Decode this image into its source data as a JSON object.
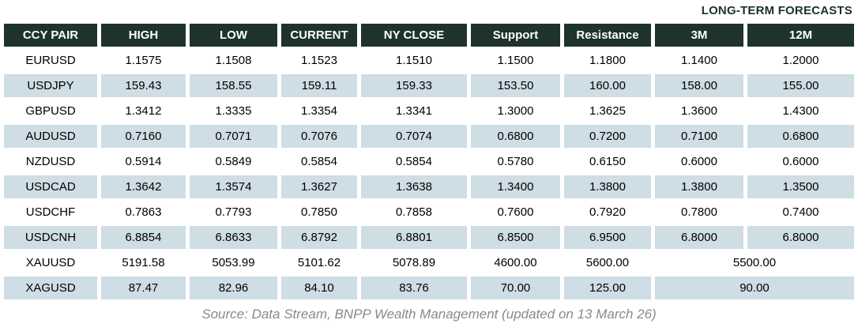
{
  "colors": {
    "header_bg": "#1e332e",
    "header_text": "#ffffff",
    "row_shade": "#cfdde5",
    "body_text": "#000000",
    "label_color": "#1b322e",
    "footer_color": "#898989",
    "page_bg": "#ffffff"
  },
  "forecast_label": "LONG-TERM FORECASTS",
  "table": {
    "columns": [
      "CCY PAIR",
      "HIGH",
      "LOW",
      "CURRENT",
      "NY CLOSE",
      "Support",
      "Resistance",
      "3M",
      "12M"
    ],
    "rows": [
      {
        "pair": "EURUSD",
        "high": "1.1575",
        "low": "1.1508",
        "current": "1.1523",
        "ny_close": "1.1510",
        "support": "1.1500",
        "resistance": "1.1800",
        "m3": "1.1400",
        "m12": "1.2000"
      },
      {
        "pair": "USDJPY",
        "high": "159.43",
        "low": "158.55",
        "current": "159.11",
        "ny_close": "159.33",
        "support": "153.50",
        "resistance": "160.00",
        "m3": "158.00",
        "m12": "155.00"
      },
      {
        "pair": "GBPUSD",
        "high": "1.3412",
        "low": "1.3335",
        "current": "1.3354",
        "ny_close": "1.3341",
        "support": "1.3000",
        "resistance": "1.3625",
        "m3": "1.3600",
        "m12": "1.4300"
      },
      {
        "pair": "AUDUSD",
        "high": "0.7160",
        "low": "0.7071",
        "current": "0.7076",
        "ny_close": "0.7074",
        "support": "0.6800",
        "resistance": "0.7200",
        "m3": "0.7100",
        "m12": "0.6800"
      },
      {
        "pair": "NZDUSD",
        "high": "0.5914",
        "low": "0.5849",
        "current": "0.5854",
        "ny_close": "0.5854",
        "support": "0.5780",
        "resistance": "0.6150",
        "m3": "0.6000",
        "m12": "0.6000"
      },
      {
        "pair": "USDCAD",
        "high": "1.3642",
        "low": "1.3574",
        "current": "1.3627",
        "ny_close": "1.3638",
        "support": "1.3400",
        "resistance": "1.3800",
        "m3": "1.3800",
        "m12": "1.3500"
      },
      {
        "pair": "USDCHF",
        "high": "0.7863",
        "low": "0.7793",
        "current": "0.7850",
        "ny_close": "0.7858",
        "support": "0.7600",
        "resistance": "0.7920",
        "m3": "0.7800",
        "m12": "0.7400"
      },
      {
        "pair": "USDCNH",
        "high": "6.8854",
        "low": "6.8633",
        "current": "6.8792",
        "ny_close": "6.8801",
        "support": "6.8500",
        "resistance": "6.9500",
        "m3": "6.8000",
        "m12": "6.8000"
      },
      {
        "pair": "XAUUSD",
        "high": "5191.58",
        "low": "5053.99",
        "current": "5101.62",
        "ny_close": "5078.89",
        "support": "4600.00",
        "resistance": "5600.00",
        "m3_12": "5500.00"
      },
      {
        "pair": "XAGUSD",
        "high": "87.47",
        "low": "82.96",
        "current": "84.10",
        "ny_close": "83.76",
        "support": "70.00",
        "resistance": "125.00",
        "m3_12": "90.00"
      }
    ]
  },
  "footer": {
    "source_text": "Source: Data Stream, BNPP Wealth Management (updated on 13 March 26)"
  }
}
